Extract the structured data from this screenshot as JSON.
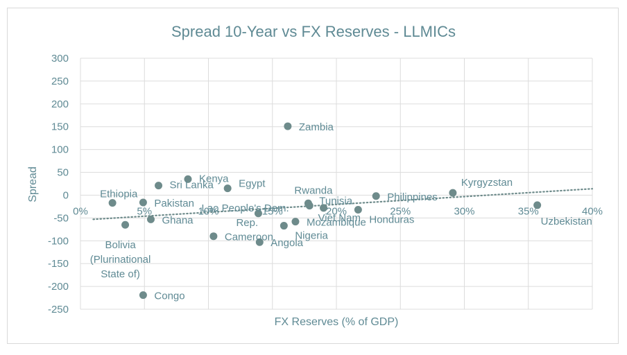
{
  "chart_data": {
    "type": "scatter",
    "title": "Spread 10-Year vs FX Reserves - LLMICs",
    "xlabel": "FX Reserves (% of GDP)",
    "ylabel": "Spread",
    "xlim": [
      0,
      40
    ],
    "ylim": [
      -250,
      300
    ],
    "x_ticks": [
      "0%",
      "5%",
      "10%",
      "15%",
      "20%",
      "25%",
      "30%",
      "35%",
      "40%"
    ],
    "y_ticks": [
      "300",
      "250",
      "200",
      "150",
      "100",
      "50",
      "0",
      "-50",
      "-100",
      "-150",
      "-200",
      "-250"
    ],
    "grid": true,
    "legend": "none",
    "colors": {
      "point": "#6e8b8b",
      "text": "#5f8a94",
      "grid": "#dcdcdc",
      "trendline": "#6e8b8b"
    },
    "trendline": {
      "type": "linear",
      "style": "dotted",
      "x": [
        1,
        40
      ],
      "y": [
        -53,
        14
      ]
    },
    "points": [
      {
        "label": "Zambia",
        "x": 16.2,
        "y": 151
      },
      {
        "label": "Kenya",
        "x": 8.4,
        "y": 35
      },
      {
        "label": "Sri Lanka",
        "x": 6.1,
        "y": 21
      },
      {
        "label": "Egypt",
        "x": 11.5,
        "y": 15
      },
      {
        "label": "Ethiopia",
        "x": 2.5,
        "y": -17
      },
      {
        "label": "Pakistan",
        "x": 4.9,
        "y": -16
      },
      {
        "label": "Bolivia (Plurinational State of)",
        "x": 3.5,
        "y": -65
      },
      {
        "label": "Ghana",
        "x": 5.5,
        "y": -53
      },
      {
        "label": "Congo",
        "x": 4.9,
        "y": -219
      },
      {
        "label": "Lao People's Dem. Rep.",
        "x": 13.9,
        "y": -40
      },
      {
        "label": "Cameroon",
        "x": 10.4,
        "y": -90
      },
      {
        "label": "Angola",
        "x": 14.0,
        "y": -103
      },
      {
        "label": "Nigeria",
        "x": 15.9,
        "y": -67
      },
      {
        "label": "Mozambique",
        "x": 16.8,
        "y": -58
      },
      {
        "label": "Rwanda",
        "x": 17.8,
        "y": -18
      },
      {
        "label": "Tunisia",
        "x": 17.9,
        "y": -23
      },
      {
        "label": "Viet Nam",
        "x": 19.0,
        "y": -28
      },
      {
        "label": "Honduras",
        "x": 21.7,
        "y": -32
      },
      {
        "label": "Philippines",
        "x": 23.1,
        "y": -2
      },
      {
        "label": "Kyrgyzstan",
        "x": 29.1,
        "y": 5
      },
      {
        "label": "Uzbekistan",
        "x": 35.7,
        "y": -22
      }
    ]
  }
}
